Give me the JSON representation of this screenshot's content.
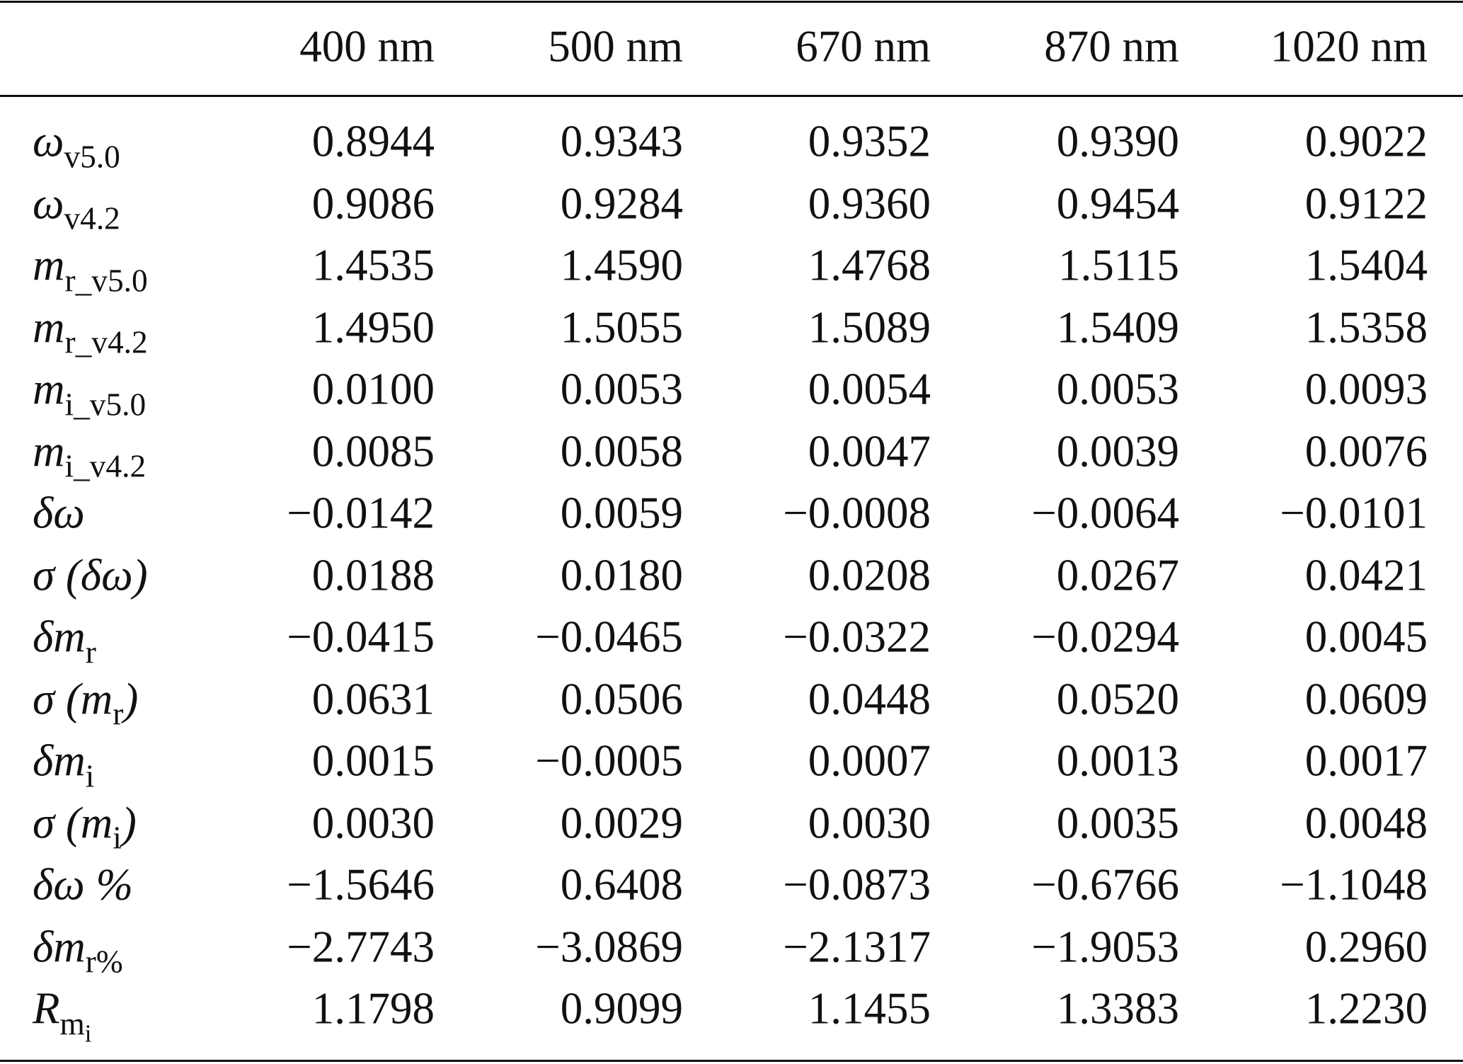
{
  "table": {
    "header": [
      "400 nm",
      "500 nm",
      "670 nm",
      "870 nm",
      "1020 nm"
    ],
    "rows": [
      {
        "label": [
          {
            "text": "ω",
            "level": 0
          },
          {
            "text": "v5.0",
            "level": 1
          }
        ],
        "cells": [
          "0.8944",
          "0.9343",
          "0.9352",
          "0.9390",
          "0.9022"
        ]
      },
      {
        "label": [
          {
            "text": "ω",
            "level": 0
          },
          {
            "text": "v4.2",
            "level": 1
          }
        ],
        "cells": [
          "0.9086",
          "0.9284",
          "0.9360",
          "0.9454",
          "0.9122"
        ]
      },
      {
        "label": [
          {
            "text": "m",
            "level": 0
          },
          {
            "text": "r_v5.0",
            "level": 1
          }
        ],
        "cells": [
          "1.4535",
          "1.4590",
          "1.4768",
          "1.5115",
          "1.5404"
        ]
      },
      {
        "label": [
          {
            "text": "m",
            "level": 0
          },
          {
            "text": "r_v4.2",
            "level": 1
          }
        ],
        "cells": [
          "1.4950",
          "1.5055",
          "1.5089",
          "1.5409",
          "1.5358"
        ]
      },
      {
        "label": [
          {
            "text": "m",
            "level": 0
          },
          {
            "text": "i_v5.0",
            "level": 1
          }
        ],
        "cells": [
          "0.0100",
          "0.0053",
          "0.0054",
          "0.0053",
          "0.0093"
        ]
      },
      {
        "label": [
          {
            "text": "m",
            "level": 0
          },
          {
            "text": "i_v4.2",
            "level": 1
          }
        ],
        "cells": [
          "0.0085",
          "0.0058",
          "0.0047",
          "0.0039",
          "0.0076"
        ]
      },
      {
        "label": [
          {
            "text": "δω",
            "level": 0
          }
        ],
        "cells": [
          "−0.0142",
          "0.0059",
          "−0.0008",
          "−0.0064",
          "−0.0101"
        ]
      },
      {
        "label": [
          {
            "text": "σ (δω)",
            "level": 0
          }
        ],
        "cells": [
          "0.0188",
          "0.0180",
          "0.0208",
          "0.0267",
          "0.0421"
        ]
      },
      {
        "label": [
          {
            "text": "δm",
            "level": 0
          },
          {
            "text": "r",
            "level": 1
          }
        ],
        "cells": [
          "−0.0415",
          "−0.0465",
          "−0.0322",
          "−0.0294",
          "0.0045"
        ]
      },
      {
        "label": [
          {
            "text": "σ (m",
            "level": 0
          },
          {
            "text": "r",
            "level": 1
          },
          {
            "text": ")",
            "level": 0
          }
        ],
        "cells": [
          "0.0631",
          "0.0506",
          "0.0448",
          "0.0520",
          "0.0609"
        ]
      },
      {
        "label": [
          {
            "text": "δm",
            "level": 0
          },
          {
            "text": "i",
            "level": 1
          }
        ],
        "cells": [
          "0.0015",
          "−0.0005",
          "0.0007",
          "0.0013",
          "0.0017"
        ]
      },
      {
        "label": [
          {
            "text": "σ (m",
            "level": 0
          },
          {
            "text": "i",
            "level": 1
          },
          {
            "text": ")",
            "level": 0
          }
        ],
        "cells": [
          "0.0030",
          "0.0029",
          "0.0030",
          "0.0035",
          "0.0048"
        ]
      },
      {
        "label": [
          {
            "text": "δω %",
            "level": 0
          }
        ],
        "cells": [
          "−1.5646",
          "0.6408",
          "−0.0873",
          "−0.6766",
          "−1.1048"
        ]
      },
      {
        "label": [
          {
            "text": "δm",
            "level": 0
          },
          {
            "text": "r%",
            "level": 1
          }
        ],
        "cells": [
          "−2.7743",
          "−3.0869",
          "−2.1317",
          "−1.9053",
          "0.2960"
        ]
      },
      {
        "label": [
          {
            "text": "R",
            "level": 0
          },
          {
            "text": "m",
            "level": 1
          },
          {
            "text": "i",
            "level": 2
          }
        ],
        "cells": [
          "1.1798",
          "0.9099",
          "1.1455",
          "1.3383",
          "1.2230"
        ]
      }
    ]
  }
}
